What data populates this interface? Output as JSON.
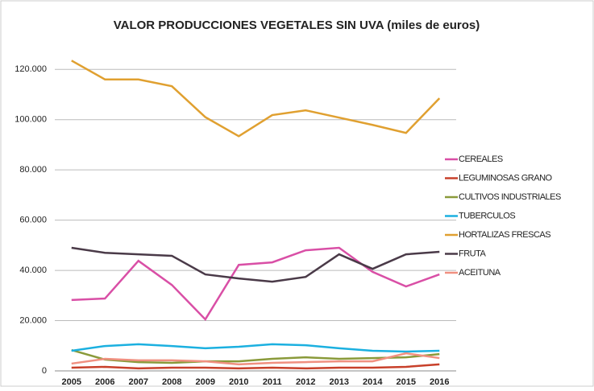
{
  "chart_data": {
    "type": "line",
    "title": "VALOR PRODUCCIONES VEGETALES SIN UVA (miles de euros)",
    "categories": [
      "2005",
      "2006",
      "2007",
      "2008",
      "2009",
      "2010",
      "2011",
      "2012",
      "2013",
      "2014",
      "2015",
      "2016"
    ],
    "series": [
      {
        "name": "CEREALES",
        "color": "#d94fa6",
        "values": [
          28200,
          28800,
          43800,
          34200,
          20500,
          42200,
          43200,
          48000,
          49000,
          39400,
          33600,
          38400
        ]
      },
      {
        "name": "LEGUMINOSAS GRANO",
        "color": "#c8402a",
        "values": [
          1300,
          1600,
          1000,
          1300,
          1300,
          1000,
          1300,
          1000,
          1300,
          1300,
          1600,
          2600
        ]
      },
      {
        "name": "CULTIVOS INDUSTRIALES",
        "color": "#8a9a3a",
        "values": [
          8300,
          4500,
          3500,
          3200,
          3800,
          3800,
          4800,
          5400,
          4800,
          5100,
          5400,
          6700
        ]
      },
      {
        "name": "TUBERCULOS",
        "color": "#1bb0e0",
        "values": [
          8000,
          9900,
          10600,
          9900,
          9000,
          9600,
          10600,
          10200,
          9000,
          8000,
          7700,
          8000
        ]
      },
      {
        "name": "HORTALIZAS FRESCAS",
        "color": "#e0a030",
        "values": [
          123500,
          116000,
          116000,
          113300,
          101000,
          93400,
          101800,
          103700,
          100800,
          97900,
          94700,
          108500
        ]
      },
      {
        "name": "FRUTA",
        "color": "#4a3a48",
        "values": [
          49000,
          47000,
          46400,
          45800,
          38400,
          36800,
          35500,
          37400,
          46400,
          40600,
          46400,
          47400
        ]
      },
      {
        "name": "ACEITUNA",
        "color": "#f09080",
        "values": [
          2900,
          4800,
          4200,
          4200,
          3800,
          2600,
          3200,
          3500,
          3800,
          3800,
          7000,
          5100
        ]
      }
    ],
    "ylim": [
      0,
      130000
    ],
    "yticks": [
      0,
      {
        "value": 20000,
        "label": "20.000"
      },
      {
        "value": 40000,
        "label": "40.000"
      },
      {
        "value": 60000,
        "label": "60.000"
      },
      {
        "value": 80000,
        "label": "80.000"
      },
      {
        "value": 100000,
        "label": "100.000"
      },
      {
        "value": 120000,
        "label": "120.000"
      }
    ],
    "grid": true,
    "legend": "right"
  }
}
